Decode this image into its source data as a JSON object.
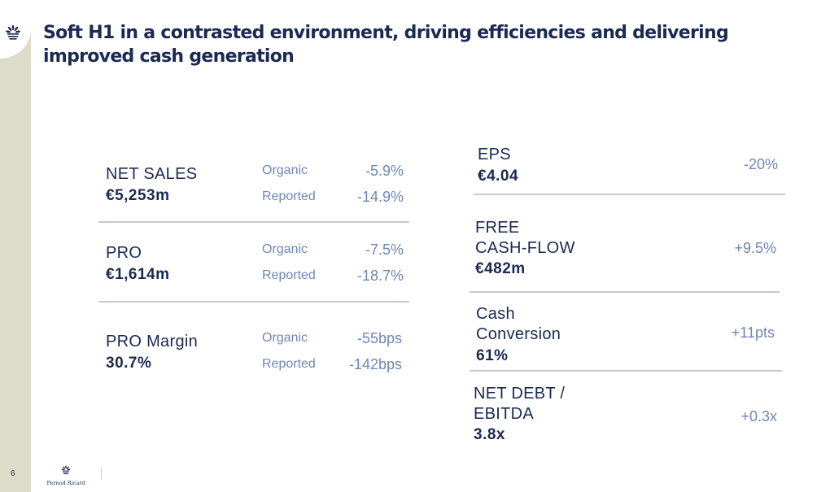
{
  "title": "Soft H1 in a contrasted environment, driving efficiencies and delivering improved cash generation",
  "page_number": "6",
  "brand": "Pernod Ricard",
  "colors": {
    "navy": "#1b2a52",
    "muted_blue": "#6f86b5",
    "side_band": "#dcdcc8",
    "divider": "#c4c9d6"
  },
  "left_kpis": [
    {
      "name": "NET SALES",
      "value": "€5,253m",
      "organic_label": "Organic",
      "organic": "-5.9%",
      "reported_label": "Reported",
      "reported": "-14.9%"
    },
    {
      "name": "PRO",
      "value": "€1,614m",
      "organic_label": "Organic",
      "organic": "-7.5%",
      "reported_label": "Reported",
      "reported": "-18.7%"
    },
    {
      "name": "PRO Margin",
      "value": "30.7%",
      "organic_label": "Organic",
      "organic": "-55bps",
      "reported_label": "Reported",
      "reported": "-142bps"
    }
  ],
  "right_kpis": [
    {
      "name_lines": [
        "EPS"
      ],
      "value": "€4.04",
      "change": "-20%"
    },
    {
      "name_lines": [
        "FREE",
        "CASH-FLOW"
      ],
      "value": "€482m",
      "change": "+9.5%"
    },
    {
      "name_lines": [
        "Cash",
        "Conversion"
      ],
      "value": "61%",
      "change": "+11pts"
    },
    {
      "name_lines": [
        "NET DEBT /",
        "EBITDA"
      ],
      "value": "3.8x",
      "change": "+0.3x"
    }
  ]
}
